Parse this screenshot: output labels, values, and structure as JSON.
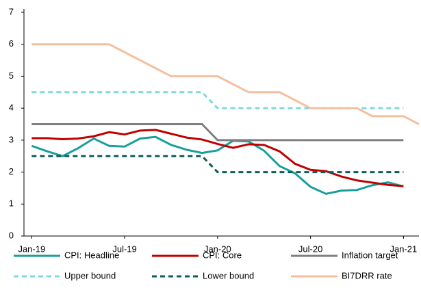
{
  "chart_data": {
    "type": "line",
    "x": [
      0,
      1,
      2,
      3,
      4,
      5,
      6,
      7,
      8,
      9,
      10,
      11,
      12,
      13,
      14,
      15,
      16,
      17,
      18,
      19,
      20,
      21,
      22,
      23,
      24,
      25
    ],
    "xlim": [
      -0.5,
      25
    ],
    "xticks": [
      {
        "value": 0,
        "label": "Jan-19"
      },
      {
        "value": 6,
        "label": "Jul-19"
      },
      {
        "value": 12,
        "label": "Jan-20"
      },
      {
        "value": 18,
        "label": "Jul-20"
      },
      {
        "value": 24,
        "label": "Jan-21"
      }
    ],
    "ylim": [
      0,
      7
    ],
    "yticks": [
      0,
      1,
      2,
      3,
      4,
      5,
      6,
      7
    ],
    "grid": false,
    "legend": "bottom",
    "series": [
      {
        "name": "CPI: Headline",
        "color": "#1a9e9a",
        "dashed": false,
        "values": [
          2.82,
          2.65,
          2.5,
          2.75,
          3.05,
          2.82,
          2.8,
          3.05,
          3.1,
          2.85,
          2.7,
          2.6,
          2.68,
          2.98,
          2.96,
          2.67,
          2.19,
          1.96,
          1.54,
          1.32,
          1.42,
          1.44,
          1.59,
          1.68,
          1.55,
          null
        ]
      },
      {
        "name": "CPI: Core",
        "color": "#c00000",
        "dashed": false,
        "values": [
          3.06,
          3.06,
          3.03,
          3.05,
          3.12,
          3.25,
          3.18,
          3.3,
          3.32,
          3.2,
          3.08,
          3.02,
          2.88,
          2.76,
          2.87,
          2.85,
          2.65,
          2.26,
          2.07,
          2.03,
          1.86,
          1.74,
          1.67,
          1.6,
          1.56,
          null
        ]
      },
      {
        "name": "Inflation target",
        "color": "#7f7f7f",
        "dashed": false,
        "values": [
          3.5,
          3.5,
          3.5,
          3.5,
          3.5,
          3.5,
          3.5,
          3.5,
          3.5,
          3.5,
          3.5,
          3.5,
          3,
          3,
          3,
          3,
          3,
          3,
          3,
          3,
          3,
          3,
          3,
          3,
          3,
          null
        ]
      },
      {
        "name": "Upper bound",
        "color": "#7fd8e0",
        "dashed": true,
        "values": [
          4.5,
          4.5,
          4.5,
          4.5,
          4.5,
          4.5,
          4.5,
          4.5,
          4.5,
          4.5,
          4.5,
          4.5,
          4,
          4,
          4,
          4,
          4,
          4,
          4,
          4,
          4,
          4,
          4,
          4,
          4,
          null
        ]
      },
      {
        "name": "Lower bound",
        "color": "#0e5c58",
        "dashed": true,
        "values": [
          2.5,
          2.5,
          2.5,
          2.5,
          2.5,
          2.5,
          2.5,
          2.5,
          2.5,
          2.5,
          2.5,
          2.5,
          2,
          2,
          2,
          2,
          2,
          2,
          2,
          2,
          2,
          2,
          2,
          2,
          2,
          null
        ]
      },
      {
        "name": "BI7DRR rate",
        "color": "#f5bf9f",
        "dashed": false,
        "values": [
          6,
          6,
          6,
          6,
          6,
          6,
          5.75,
          5.5,
          5.25,
          5,
          5,
          5,
          5,
          4.75,
          4.5,
          4.5,
          4.5,
          4.25,
          4,
          4,
          4,
          4,
          3.75,
          3.75,
          3.75,
          3.5
        ]
      }
    ]
  }
}
